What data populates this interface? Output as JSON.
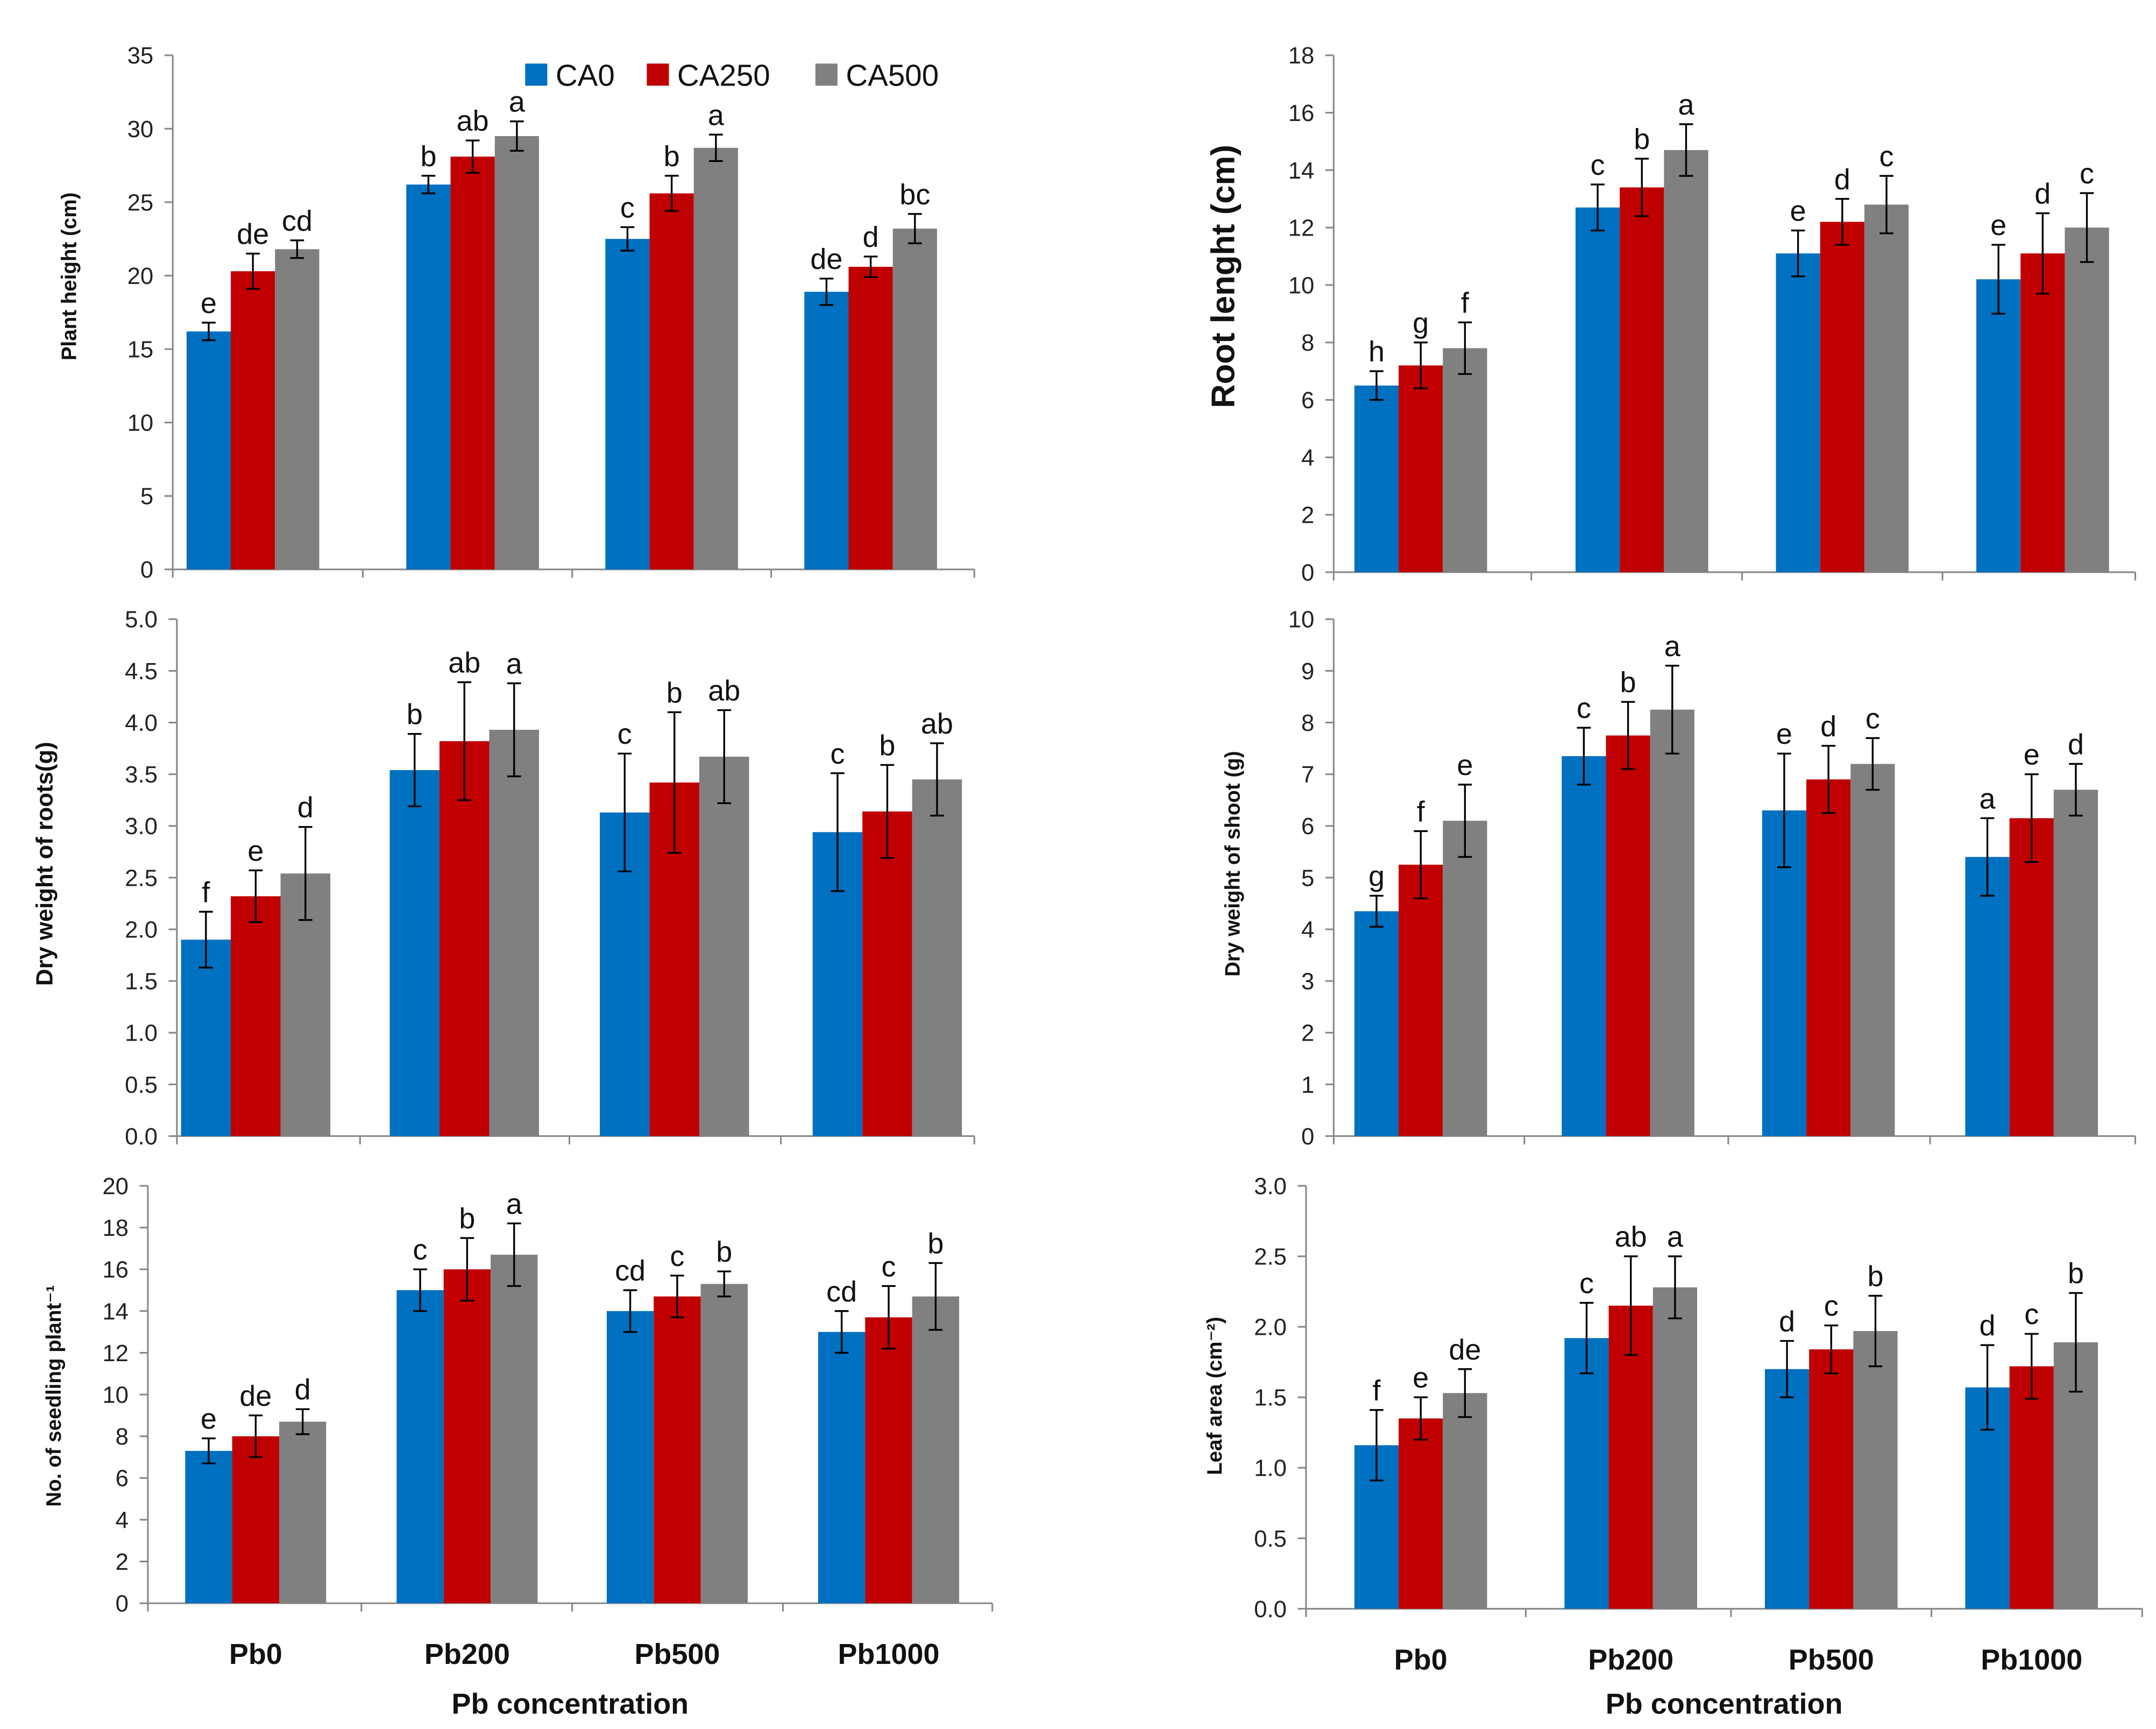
{
  "colors": {
    "CA0": "#0070C0",
    "CA250": "#C00000",
    "CA500": "#808080",
    "axis": "#888888"
  },
  "chart_data": [
    {
      "type": "bar",
      "title": "",
      "ylabel": "Plant height (cm)",
      "xlabel": "",
      "ylim": [
        0,
        35
      ],
      "ystep": 5,
      "decimals": 0,
      "categories": [
        "Pb0",
        "Pb200",
        "Pb500",
        "Pb1000"
      ],
      "legend": {
        "placement": "top",
        "entries": [
          "CA0",
          "CA250",
          "CA500"
        ]
      },
      "series": [
        {
          "name": "CA0",
          "values": [
            16.2,
            26.2,
            22.5,
            18.9
          ],
          "errors": [
            0.6,
            0.6,
            0.8,
            0.9
          ],
          "letters": [
            "e",
            "b",
            "c",
            "de"
          ]
        },
        {
          "name": "CA250",
          "values": [
            20.3,
            28.1,
            25.6,
            20.6
          ],
          "errors": [
            1.2,
            1.1,
            1.2,
            0.7
          ],
          "letters": [
            "de",
            "ab",
            "b",
            "d"
          ]
        },
        {
          "name": "CA500",
          "values": [
            21.8,
            29.5,
            28.7,
            23.2
          ],
          "errors": [
            0.6,
            1.0,
            0.9,
            1.0
          ],
          "letters": [
            "cd",
            "a",
            "a",
            "bc"
          ]
        }
      ]
    },
    {
      "type": "bar",
      "title": "",
      "ylabel": "Root lenght (cm)",
      "xlabel": "",
      "ylim": [
        0,
        18
      ],
      "ystep": 2,
      "decimals": 0,
      "categories": [
        "Pb0",
        "Pb200",
        "Pb500",
        "Pb1000"
      ],
      "series": [
        {
          "name": "CA0",
          "values": [
            6.5,
            12.7,
            11.1,
            10.2
          ],
          "errors": [
            0.5,
            0.8,
            0.8,
            1.2
          ],
          "letters": [
            "h",
            "c",
            "e",
            "e"
          ]
        },
        {
          "name": "CA250",
          "values": [
            7.2,
            13.4,
            12.2,
            11.1
          ],
          "errors": [
            0.8,
            1.0,
            0.8,
            1.4
          ],
          "letters": [
            "g",
            "b",
            "d",
            "d"
          ]
        },
        {
          "name": "CA500",
          "values": [
            7.8,
            14.7,
            12.8,
            12.0
          ],
          "errors": [
            0.9,
            0.9,
            1.0,
            1.2
          ],
          "letters": [
            "f",
            "a",
            "c",
            "c"
          ]
        }
      ]
    },
    {
      "type": "bar",
      "title": "",
      "ylabel": "Dry  weight of roots(g)",
      "xlabel": "",
      "ylim": [
        0,
        5
      ],
      "ystep": 0.5,
      "decimals": 1,
      "categories": [
        "Pb0",
        "Pb200",
        "Pb500",
        "Pb1000"
      ],
      "series": [
        {
          "name": "CA0",
          "values": [
            1.9,
            3.54,
            3.13,
            2.94
          ],
          "errors": [
            0.27,
            0.35,
            0.57,
            0.57
          ],
          "letters": [
            "f",
            "b",
            "c",
            "c"
          ]
        },
        {
          "name": "CA250",
          "values": [
            2.32,
            3.82,
            3.42,
            3.14
          ],
          "errors": [
            0.25,
            0.57,
            0.68,
            0.45
          ],
          "letters": [
            "e",
            "ab",
            "b",
            "b"
          ]
        },
        {
          "name": "CA500",
          "values": [
            2.54,
            3.93,
            3.67,
            3.45
          ],
          "errors": [
            0.45,
            0.45,
            0.45,
            0.35
          ],
          "letters": [
            "d",
            "a",
            "ab",
            "ab"
          ]
        }
      ]
    },
    {
      "type": "bar",
      "title": "",
      "ylabel": "Dry weight of shoot (g)",
      "xlabel": "",
      "ylim": [
        0,
        10
      ],
      "ystep": 1,
      "decimals": 0,
      "categories": [
        "Pb0",
        "Pb200",
        "Pb500",
        "Pb1000"
      ],
      "series": [
        {
          "name": "CA0",
          "values": [
            4.35,
            7.35,
            6.3,
            5.4
          ],
          "errors": [
            0.3,
            0.55,
            1.1,
            0.75
          ],
          "letters": [
            "g",
            "c",
            "e",
            "a"
          ]
        },
        {
          "name": "CA250",
          "values": [
            5.25,
            7.75,
            6.9,
            6.15
          ],
          "errors": [
            0.65,
            0.65,
            0.65,
            0.85
          ],
          "letters": [
            "f",
            "b",
            "d",
            "e"
          ]
        },
        {
          "name": "CA500",
          "values": [
            6.1,
            8.25,
            7.2,
            6.7
          ],
          "errors": [
            0.7,
            0.85,
            0.5,
            0.5
          ],
          "letters": [
            "e",
            "a",
            "c",
            "d"
          ]
        }
      ]
    },
    {
      "type": "bar",
      "title": "",
      "ylabel": "No. of seedling plant⁻¹",
      "xlabel": "Pb concentration",
      "ylim": [
        0,
        20
      ],
      "ystep": 2,
      "decimals": 0,
      "categories": [
        "Pb0",
        "Pb200",
        "Pb500",
        "Pb1000"
      ],
      "series": [
        {
          "name": "CA0",
          "values": [
            7.3,
            15.0,
            14.0,
            13.0
          ],
          "errors": [
            0.6,
            1.0,
            1.0,
            1.0
          ],
          "letters": [
            "e",
            "c",
            "cd",
            "cd"
          ]
        },
        {
          "name": "CA250",
          "values": [
            8.0,
            16.0,
            14.7,
            13.7
          ],
          "errors": [
            1.0,
            1.5,
            1.0,
            1.5
          ],
          "letters": [
            "de",
            "b",
            "c",
            "c"
          ]
        },
        {
          "name": "CA500",
          "values": [
            8.7,
            16.7,
            15.3,
            14.7
          ],
          "errors": [
            0.6,
            1.5,
            0.6,
            1.6
          ],
          "letters": [
            "d",
            "a",
            "b",
            "b"
          ]
        }
      ]
    },
    {
      "type": "bar",
      "title": "",
      "ylabel": "Leaf area (cm⁻²)",
      "xlabel": "Pb concentration",
      "ylim": [
        0,
        3
      ],
      "ystep": 0.5,
      "decimals": 1,
      "categories": [
        "Pb0",
        "Pb200",
        "Pb500",
        "Pb1000"
      ],
      "series": [
        {
          "name": "CA0",
          "values": [
            1.16,
            1.92,
            1.7,
            1.57
          ],
          "errors": [
            0.25,
            0.25,
            0.2,
            0.3
          ],
          "letters": [
            "f",
            "c",
            "d",
            "d"
          ]
        },
        {
          "name": "CA250",
          "values": [
            1.35,
            2.15,
            1.84,
            1.72
          ],
          "errors": [
            0.15,
            0.35,
            0.17,
            0.23
          ],
          "letters": [
            "e",
            "ab",
            "c",
            "c"
          ]
        },
        {
          "name": "CA500",
          "values": [
            1.53,
            2.28,
            1.97,
            1.89
          ],
          "errors": [
            0.17,
            0.22,
            0.25,
            0.35
          ],
          "letters": [
            "de",
            "a",
            "b",
            "b"
          ]
        }
      ]
    }
  ]
}
